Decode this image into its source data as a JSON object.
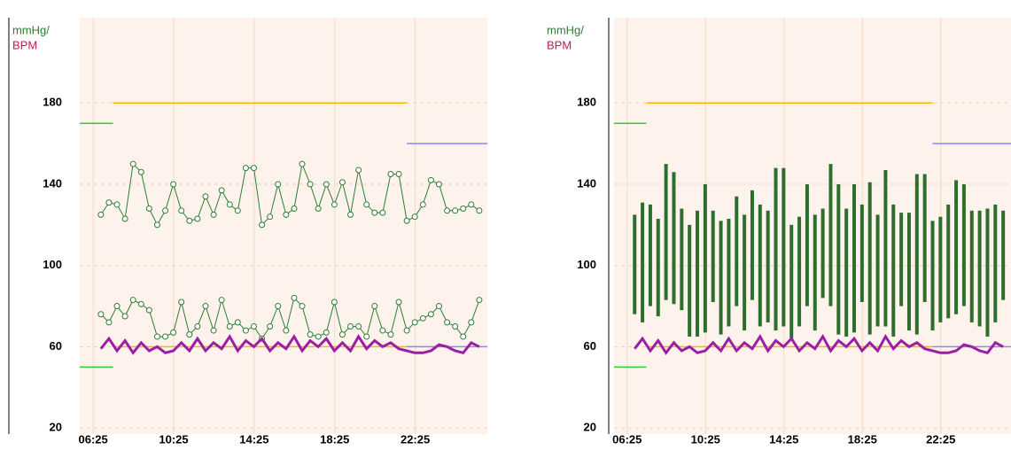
{
  "chart_data": [
    {
      "type": "line",
      "ylabel": "mmHg/",
      "ylabel2": "BPM",
      "xlim": [
        5.75,
        26.0
      ],
      "ylim": [
        17,
        222
      ],
      "yticks": [
        20,
        60,
        100,
        140,
        180
      ],
      "xticks": [
        {
          "value": 6.4167,
          "label": "06:25"
        },
        {
          "value": 10.4167,
          "label": "10:25"
        },
        {
          "value": 14.4167,
          "label": "14:25"
        },
        {
          "value": 18.4167,
          "label": "18:25"
        },
        {
          "value": 22.4167,
          "label": "22:25"
        }
      ],
      "grid": true,
      "x": [
        6.8,
        7.2,
        7.6,
        8.0,
        8.4,
        8.8,
        9.2,
        9.6,
        10.0,
        10.4,
        10.8,
        11.2,
        11.6,
        12.0,
        12.4,
        12.8,
        13.2,
        13.6,
        14.0,
        14.4,
        14.8,
        15.2,
        15.6,
        16.0,
        16.4,
        16.8,
        17.2,
        17.6,
        18.0,
        18.4,
        18.8,
        19.2,
        19.6,
        20.0,
        20.4,
        20.8,
        21.2,
        21.6,
        22.0,
        22.4,
        22.8,
        23.2,
        23.6,
        24.0,
        24.4,
        24.8,
        25.2,
        25.6
      ],
      "series": [
        {
          "color": "#2e7d32",
          "marker": true,
          "values": [
            125,
            131,
            130,
            123,
            150,
            146,
            128,
            120,
            127,
            140,
            127,
            122,
            123,
            134,
            125,
            137,
            130,
            127,
            148,
            148,
            120,
            124,
            140,
            125,
            128,
            150,
            140,
            128,
            140,
            130,
            141,
            125,
            147,
            130,
            126,
            126,
            145,
            145,
            122,
            124,
            130,
            142,
            140,
            127,
            127,
            128,
            130,
            127
          ]
        },
        {
          "color": "#2e7d32",
          "marker": true,
          "values": [
            76,
            72,
            80,
            75,
            83,
            81,
            78,
            65,
            65,
            67,
            82,
            66,
            70,
            80,
            68,
            83,
            70,
            72,
            68,
            70,
            64,
            70,
            80,
            68,
            84,
            80,
            66,
            65,
            67,
            82,
            66,
            70,
            70,
            65,
            80,
            68,
            66,
            82,
            68,
            72,
            74,
            76,
            80,
            72,
            70,
            65,
            72,
            83
          ]
        },
        {
          "color": "#9c1fa3",
          "marker": false,
          "values": [
            59,
            64,
            58,
            63,
            57,
            62,
            58,
            60,
            57,
            58,
            62,
            58,
            64,
            58,
            62,
            59,
            65,
            58,
            63,
            60,
            64,
            58,
            62,
            59,
            65,
            58,
            63,
            60,
            64,
            58,
            62,
            58,
            65,
            59,
            63,
            60,
            62,
            59,
            58,
            57,
            57,
            58,
            61,
            60,
            58,
            57,
            62,
            60
          ]
        }
      ],
      "limits": [
        {
          "color": "#f5b800",
          "value": 180,
          "x": [
            7.4,
            22.0
          ]
        },
        {
          "color": "#f5b800",
          "value": 60,
          "x": [
            7.4,
            22.0
          ]
        },
        {
          "color": "#33cc33",
          "value": 170,
          "x": [
            5.75,
            7.4
          ]
        },
        {
          "color": "#33cc33",
          "value": 50,
          "x": [
            5.75,
            7.4
          ]
        },
        {
          "color": "#8888ee",
          "value": 160,
          "x": [
            22.0,
            26.0
          ]
        },
        {
          "color": "#8888ee",
          "value": 60,
          "x": [
            22.0,
            26.0
          ]
        }
      ]
    },
    {
      "type": "bar",
      "ylabel": "mmHg/",
      "ylabel2": "BPM",
      "xlim": [
        5.75,
        26.0
      ],
      "ylim": [
        17,
        222
      ],
      "yticks": [
        20,
        60,
        100,
        140,
        180
      ],
      "xticks": [
        {
          "value": 6.4167,
          "label": "06:25"
        },
        {
          "value": 10.4167,
          "label": "10:25"
        },
        {
          "value": 14.4167,
          "label": "14:25"
        },
        {
          "value": 18.4167,
          "label": "18:25"
        },
        {
          "value": 22.4167,
          "label": "22:25"
        }
      ],
      "grid": true,
      "x": [
        6.8,
        7.2,
        7.6,
        8.0,
        8.4,
        8.8,
        9.2,
        9.6,
        10.0,
        10.4,
        10.8,
        11.2,
        11.6,
        12.0,
        12.4,
        12.8,
        13.2,
        13.6,
        14.0,
        14.4,
        14.8,
        15.2,
        15.6,
        16.0,
        16.4,
        16.8,
        17.2,
        17.6,
        18.0,
        18.4,
        18.8,
        19.2,
        19.6,
        20.0,
        20.4,
        20.8,
        21.2,
        21.6,
        22.0,
        22.4,
        22.8,
        23.2,
        23.6,
        24.0,
        24.4,
        24.8,
        25.2,
        25.6
      ],
      "series": [
        {
          "color": "#2d6e2d",
          "values": [
            125,
            131,
            130,
            123,
            150,
            146,
            128,
            120,
            127,
            140,
            127,
            122,
            123,
            134,
            125,
            137,
            130,
            127,
            148,
            148,
            120,
            124,
            140,
            125,
            128,
            150,
            140,
            128,
            140,
            130,
            141,
            125,
            147,
            130,
            126,
            126,
            145,
            145,
            122,
            124,
            130,
            142,
            140,
            127,
            127,
            128,
            130,
            127
          ]
        },
        {
          "color": "#2d6e2d",
          "values": [
            76,
            72,
            80,
            75,
            83,
            81,
            78,
            65,
            65,
            67,
            82,
            66,
            70,
            80,
            68,
            83,
            70,
            72,
            68,
            70,
            64,
            70,
            80,
            68,
            84,
            80,
            66,
            65,
            67,
            82,
            66,
            70,
            70,
            65,
            80,
            68,
            66,
            82,
            68,
            72,
            74,
            76,
            80,
            72,
            70,
            65,
            72,
            83
          ]
        },
        {
          "color": "#9c1fa3",
          "values": [
            59,
            64,
            58,
            63,
            57,
            62,
            58,
            60,
            57,
            58,
            62,
            58,
            64,
            58,
            62,
            59,
            65,
            58,
            63,
            60,
            64,
            58,
            62,
            59,
            65,
            58,
            63,
            60,
            64,
            58,
            62,
            58,
            65,
            59,
            63,
            60,
            62,
            59,
            58,
            57,
            57,
            58,
            61,
            60,
            58,
            57,
            62,
            60
          ]
        }
      ],
      "limits": [
        {
          "color": "#f5b800",
          "value": 180,
          "x": [
            7.4,
            22.0
          ]
        },
        {
          "color": "#f5b800",
          "value": 60,
          "x": [
            7.4,
            22.0
          ]
        },
        {
          "color": "#33cc33",
          "value": 170,
          "x": [
            5.75,
            7.4
          ]
        },
        {
          "color": "#33cc33",
          "value": 50,
          "x": [
            5.75,
            7.4
          ]
        },
        {
          "color": "#8888ee",
          "value": 160,
          "x": [
            22.0,
            26.0
          ]
        },
        {
          "color": "#8888ee",
          "value": 60,
          "x": [
            22.0,
            26.0
          ]
        }
      ]
    }
  ]
}
